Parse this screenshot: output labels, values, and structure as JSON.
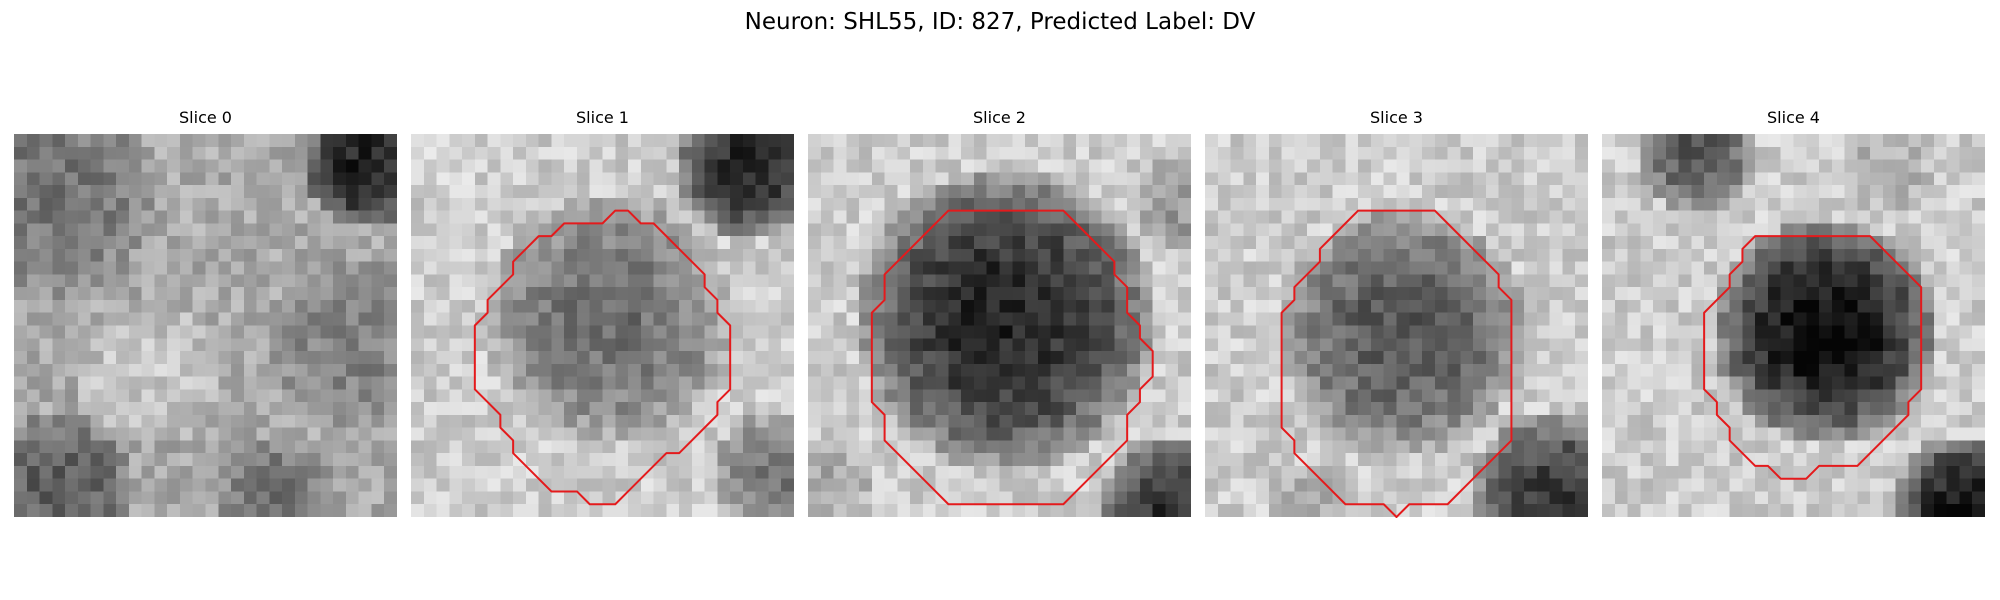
{
  "figure": {
    "title": "Neuron: SHL55, ID: 827, Predicted Label: DV"
  },
  "panels": [
    {
      "title": "Slice 0",
      "outline": []
    },
    {
      "title": "Slice 1",
      "outline": [
        [
          16,
          6
        ],
        [
          17,
          6
        ],
        [
          18,
          7
        ],
        [
          19,
          7
        ],
        [
          20,
          8
        ],
        [
          21,
          9
        ],
        [
          22,
          10
        ],
        [
          23,
          11
        ],
        [
          23,
          12
        ],
        [
          24,
          13
        ],
        [
          24,
          14
        ],
        [
          25,
          15
        ],
        [
          25,
          20
        ],
        [
          24,
          21
        ],
        [
          24,
          22
        ],
        [
          23,
          23
        ],
        [
          22,
          24
        ],
        [
          21,
          25
        ],
        [
          20,
          25
        ],
        [
          19,
          26
        ],
        [
          18,
          27
        ],
        [
          17,
          28
        ],
        [
          16,
          29
        ],
        [
          14,
          29
        ],
        [
          13,
          28
        ],
        [
          11,
          28
        ],
        [
          10,
          27
        ],
        [
          9,
          26
        ],
        [
          8,
          25
        ],
        [
          8,
          24
        ],
        [
          7,
          23
        ],
        [
          7,
          22
        ],
        [
          6,
          21
        ],
        [
          5,
          20
        ],
        [
          5,
          15
        ],
        [
          6,
          14
        ],
        [
          6,
          13
        ],
        [
          7,
          12
        ],
        [
          8,
          11
        ],
        [
          8,
          10
        ],
        [
          9,
          9
        ],
        [
          10,
          8
        ],
        [
          11,
          8
        ],
        [
          12,
          7
        ],
        [
          15,
          7
        ]
      ]
    },
    {
      "title": "Slice 2",
      "outline": [
        [
          11,
          6
        ],
        [
          20,
          6
        ],
        [
          21,
          7
        ],
        [
          22,
          8
        ],
        [
          23,
          9
        ],
        [
          24,
          10
        ],
        [
          24,
          11
        ],
        [
          25,
          12
        ],
        [
          25,
          14
        ],
        [
          26,
          15
        ],
        [
          26,
          16
        ],
        [
          27,
          17
        ],
        [
          27,
          19
        ],
        [
          26,
          20
        ],
        [
          26,
          21
        ],
        [
          25,
          22
        ],
        [
          25,
          24
        ],
        [
          24,
          25
        ],
        [
          23,
          26
        ],
        [
          22,
          27
        ],
        [
          21,
          28
        ],
        [
          20,
          29
        ],
        [
          11,
          29
        ],
        [
          10,
          28
        ],
        [
          9,
          27
        ],
        [
          8,
          26
        ],
        [
          7,
          25
        ],
        [
          6,
          24
        ],
        [
          6,
          22
        ],
        [
          5,
          21
        ],
        [
          5,
          14
        ],
        [
          6,
          13
        ],
        [
          6,
          11
        ],
        [
          7,
          10
        ],
        [
          8,
          9
        ],
        [
          9,
          8
        ],
        [
          10,
          7
        ]
      ]
    },
    {
      "title": "Slice 3",
      "outline": [
        [
          12,
          6
        ],
        [
          18,
          6
        ],
        [
          19,
          7
        ],
        [
          20,
          8
        ],
        [
          21,
          9
        ],
        [
          22,
          10
        ],
        [
          23,
          11
        ],
        [
          23,
          12
        ],
        [
          24,
          13
        ],
        [
          24,
          24
        ],
        [
          23,
          25
        ],
        [
          22,
          26
        ],
        [
          21,
          27
        ],
        [
          20,
          28
        ],
        [
          19,
          29
        ],
        [
          16,
          29
        ],
        [
          15,
          30
        ],
        [
          14,
          29
        ],
        [
          11,
          29
        ],
        [
          10,
          28
        ],
        [
          9,
          27
        ],
        [
          8,
          26
        ],
        [
          7,
          25
        ],
        [
          7,
          24
        ],
        [
          6,
          23
        ],
        [
          6,
          14
        ],
        [
          7,
          13
        ],
        [
          7,
          12
        ],
        [
          8,
          11
        ],
        [
          9,
          10
        ],
        [
          9,
          9
        ],
        [
          10,
          8
        ],
        [
          11,
          7
        ]
      ]
    },
    {
      "title": "Slice 4",
      "outline": [
        [
          12,
          8
        ],
        [
          21,
          8
        ],
        [
          22,
          9
        ],
        [
          23,
          10
        ],
        [
          24,
          11
        ],
        [
          25,
          12
        ],
        [
          25,
          20
        ],
        [
          24,
          21
        ],
        [
          24,
          22
        ],
        [
          23,
          23
        ],
        [
          22,
          24
        ],
        [
          21,
          25
        ],
        [
          20,
          26
        ],
        [
          17,
          26
        ],
        [
          16,
          27
        ],
        [
          14,
          27
        ],
        [
          13,
          26
        ],
        [
          12,
          26
        ],
        [
          11,
          25
        ],
        [
          10,
          24
        ],
        [
          10,
          23
        ],
        [
          9,
          22
        ],
        [
          9,
          21
        ],
        [
          8,
          20
        ],
        [
          8,
          14
        ],
        [
          9,
          13
        ],
        [
          10,
          12
        ],
        [
          10,
          11
        ],
        [
          11,
          10
        ],
        [
          11,
          9
        ]
      ]
    }
  ],
  "style": {
    "outline_color": "#e41a1c"
  }
}
